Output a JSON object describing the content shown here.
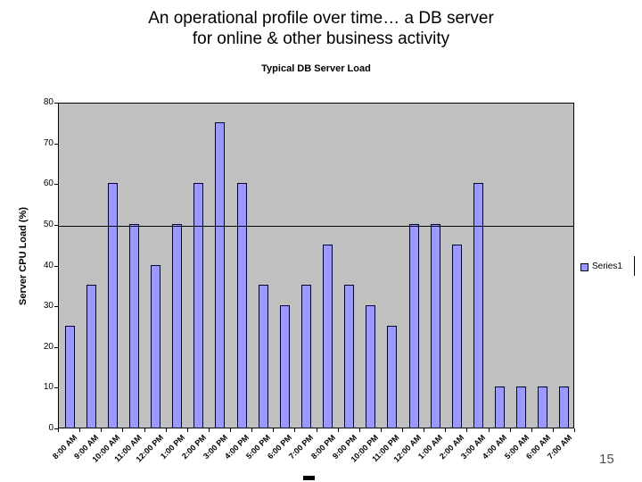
{
  "slide": {
    "title_line1": "An operational profile over time… a DB server",
    "title_line2": "for online & other business activity",
    "page_number": "15"
  },
  "chart_data": {
    "type": "bar",
    "title": "Typical DB Server Load",
    "xlabel": "",
    "ylabel": "Server CPU Load (%)",
    "legend_entries": [
      "Series1"
    ],
    "legend_position": "right",
    "categories": [
      "8:00 AM",
      "9:00 AM",
      "10:00 AM",
      "11:00 AM",
      "12:00 PM",
      "1:00 PM",
      "2:00 PM",
      "3:00 PM",
      "4:00 PM",
      "5:00 PM",
      "6:00 PM",
      "7:00 PM",
      "8:00 PM",
      "9:00 PM",
      "10:00 PM",
      "11:00 PM",
      "12:00 AM",
      "1:00 AM",
      "2:00 AM",
      "3:00 AM",
      "4:00 AM",
      "5:00 AM",
      "6:00 AM",
      "7:00 AM"
    ],
    "values": [
      25,
      35,
      60,
      50,
      40,
      50,
      60,
      75,
      60,
      35,
      30,
      35,
      45,
      35,
      30,
      25,
      50,
      50,
      45,
      60,
      10,
      10,
      10,
      10
    ],
    "ylim": [
      0,
      80
    ],
    "ytick_interval": 10,
    "reference_line_y": 50,
    "grid": "single horizontal line at 50 only",
    "colors": {
      "bar_fill": "#9999FF",
      "bar_border": "#000033",
      "plot_background": "#C0C0C0",
      "axis": "#000000",
      "page_number": "#4d4d4d"
    }
  }
}
